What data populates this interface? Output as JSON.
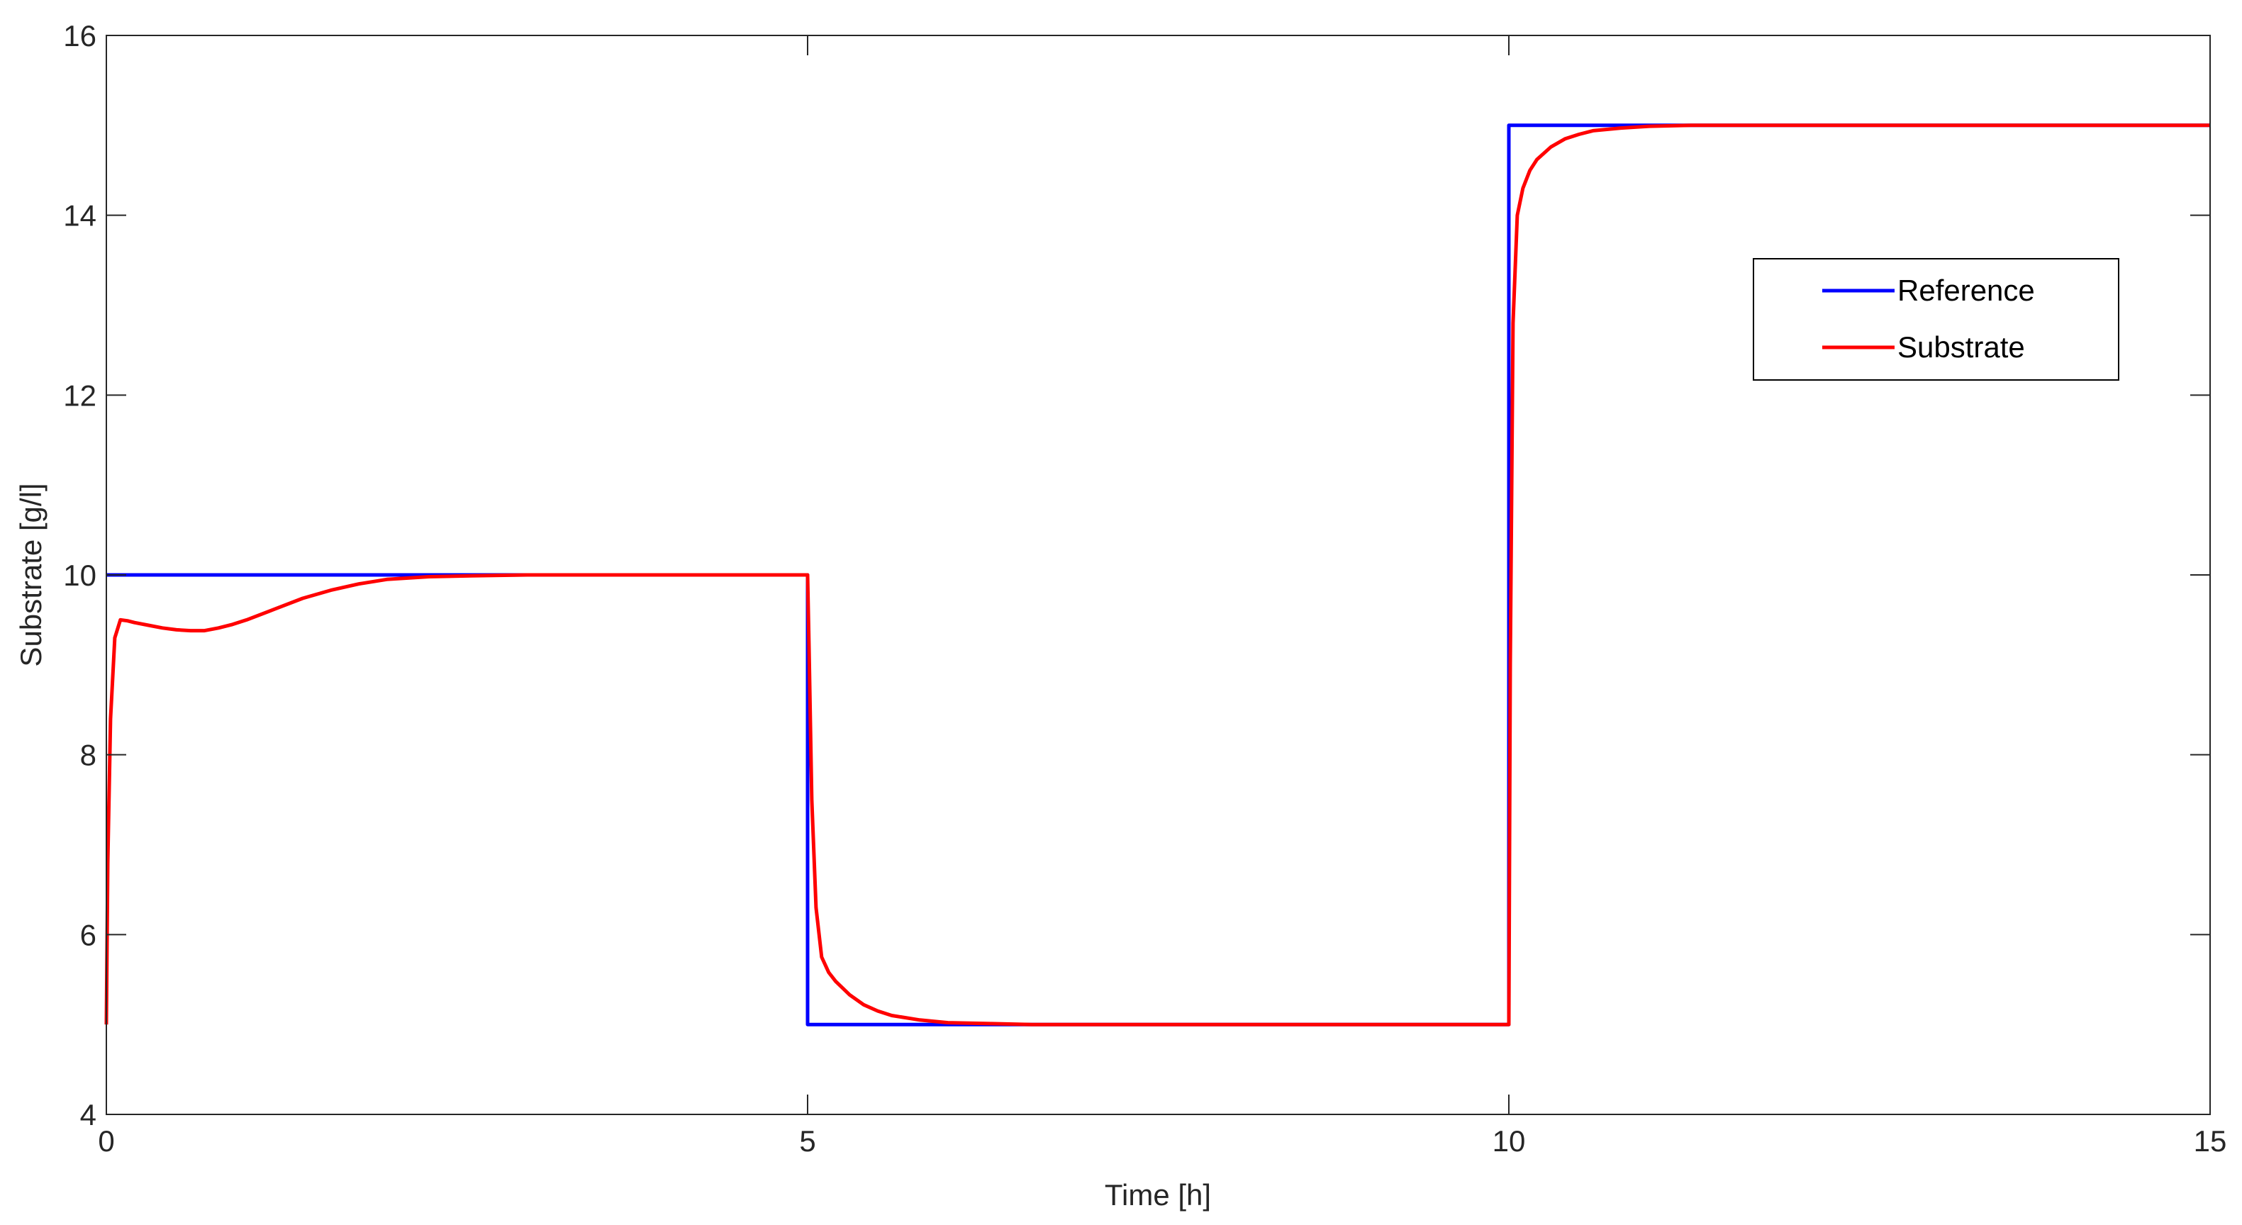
{
  "chart_data": {
    "type": "line",
    "xlabel": "Time [h]",
    "ylabel": "Substrate [g/l]",
    "xlim": [
      0,
      15
    ],
    "ylim": [
      4,
      16
    ],
    "xticks": [
      0,
      5,
      10,
      15
    ],
    "yticks": [
      4,
      6,
      8,
      10,
      12,
      14,
      16
    ],
    "xtick_labels": [
      "0",
      "5",
      "10",
      "15"
    ],
    "ytick_labels": [
      "4",
      "6",
      "8",
      "10",
      "12",
      "14",
      "16"
    ],
    "grid": false,
    "legend_position": "upper-right",
    "series": [
      {
        "name": "Reference",
        "color": "#0000ff",
        "x": [
          0,
          5,
          5,
          10,
          10,
          15
        ],
        "y": [
          10,
          10,
          5,
          5,
          15,
          15
        ]
      },
      {
        "name": "Substrate",
        "color": "#ff0000",
        "x": [
          0,
          0.01,
          0.03,
          0.06,
          0.1,
          0.15,
          0.2,
          0.3,
          0.4,
          0.5,
          0.6,
          0.7,
          0.8,
          0.9,
          1.0,
          1.2,
          1.4,
          1.6,
          1.8,
          2.0,
          2.3,
          2.6,
          3.0,
          3.5,
          4.0,
          5.0,
          5.01,
          5.03,
          5.06,
          5.1,
          5.15,
          5.2,
          5.3,
          5.4,
          5.5,
          5.6,
          5.8,
          6.0,
          6.3,
          6.6,
          7.0,
          8.0,
          9.0,
          10.0,
          10.01,
          10.03,
          10.06,
          10.1,
          10.15,
          10.2,
          10.3,
          10.4,
          10.5,
          10.6,
          10.8,
          11.0,
          11.3,
          11.6,
          12.0,
          13.0,
          14.0,
          15.0
        ],
        "y": [
          5,
          6.8,
          8.4,
          9.3,
          9.5,
          9.49,
          9.47,
          9.44,
          9.41,
          9.39,
          9.38,
          9.38,
          9.41,
          9.45,
          9.5,
          9.62,
          9.74,
          9.83,
          9.9,
          9.95,
          9.98,
          9.99,
          10,
          10,
          10,
          10,
          9.2,
          7.5,
          6.3,
          5.75,
          5.58,
          5.48,
          5.33,
          5.22,
          5.15,
          5.1,
          5.05,
          5.02,
          5.01,
          5,
          5,
          5,
          5,
          5,
          9.0,
          12.8,
          14.0,
          14.3,
          14.5,
          14.62,
          14.76,
          14.85,
          14.9,
          14.94,
          14.97,
          14.99,
          15,
          15,
          15,
          15,
          15,
          15
        ]
      }
    ]
  }
}
